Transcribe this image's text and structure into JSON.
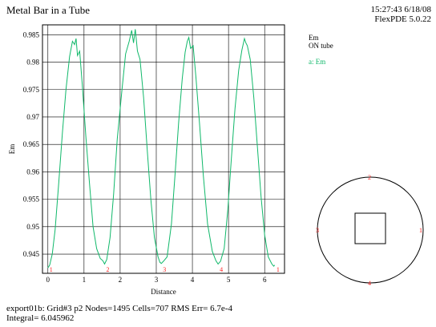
{
  "header": {
    "title": "Metal Bar in a Tube",
    "stamp": "15:27:43 6/18/08\nFlexPDE 5.0.22"
  },
  "legend": {
    "title": "Em\nON tube",
    "series_entry": "a: Em"
  },
  "footer": {
    "line1": "export01b:  Grid#3  p2  Nodes=1495 Cells=707 RMS Err= 6.7e-4",
    "line2": "Integral=  6.045962"
  },
  "colors": {
    "series": "#10b86a",
    "marker": "#ff2020",
    "grid": "#000000"
  },
  "chart_data": {
    "type": "line",
    "title": "Metal Bar in a Tube",
    "xlabel": "Distance",
    "ylabel": "Em",
    "xlim": [
      -0.15,
      6.55
    ],
    "ylim": [
      0.9415,
      0.9868
    ],
    "xticks": [
      "0",
      "1",
      "2",
      "3",
      "4",
      "5",
      "6"
    ],
    "yticks": [
      "0.945",
      "0.95",
      "0.955",
      "0.96",
      "0.965",
      "0.97",
      "0.975",
      "0.98",
      "0.985"
    ],
    "grid": true,
    "path_markers": [
      {
        "label": "1",
        "x": 0.0
      },
      {
        "label": "2",
        "x": 1.57
      },
      {
        "label": "3",
        "x": 3.14
      },
      {
        "label": "4",
        "x": 4.71
      },
      {
        "label": "1",
        "x": 6.28
      }
    ],
    "series": [
      {
        "name": "a: Em",
        "x": [
          0.0,
          0.05,
          0.12,
          0.2,
          0.3,
          0.4,
          0.5,
          0.6,
          0.68,
          0.74,
          0.78,
          0.82,
          0.88,
          0.95,
          1.05,
          1.15,
          1.25,
          1.35,
          1.45,
          1.52,
          1.57,
          1.63,
          1.72,
          1.82,
          1.92,
          2.05,
          2.15,
          2.25,
          2.32,
          2.37,
          2.42,
          2.48,
          2.55,
          2.65,
          2.75,
          2.85,
          2.95,
          3.05,
          3.1,
          3.14,
          3.2,
          3.3,
          3.42,
          3.52,
          3.62,
          3.72,
          3.8,
          3.86,
          3.9,
          3.95,
          4.02,
          4.1,
          4.2,
          4.3,
          4.42,
          4.55,
          4.65,
          4.71,
          4.78,
          4.88,
          4.98,
          5.08,
          5.18,
          5.28,
          5.37,
          5.44,
          5.48,
          5.52,
          5.6,
          5.7,
          5.8,
          5.9,
          6.0,
          6.1,
          6.2,
          6.25,
          6.28
        ],
        "values": [
          0.9425,
          0.943,
          0.945,
          0.9495,
          0.958,
          0.967,
          0.975,
          0.981,
          0.9838,
          0.9832,
          0.9843,
          0.9812,
          0.982,
          0.976,
          0.9665,
          0.958,
          0.95,
          0.946,
          0.9442,
          0.9438,
          0.9432,
          0.944,
          0.948,
          0.956,
          0.966,
          0.975,
          0.9815,
          0.9838,
          0.9858,
          0.9835,
          0.986,
          0.982,
          0.9805,
          0.9735,
          0.964,
          0.955,
          0.948,
          0.9445,
          0.9435,
          0.9433,
          0.9437,
          0.9445,
          0.9505,
          0.9595,
          0.969,
          0.977,
          0.9818,
          0.9838,
          0.9845,
          0.9825,
          0.983,
          0.977,
          0.9685,
          0.9595,
          0.9505,
          0.9455,
          0.9438,
          0.9432,
          0.9437,
          0.946,
          0.953,
          0.9625,
          0.9715,
          0.9785,
          0.9822,
          0.9843,
          0.9835,
          0.983,
          0.9805,
          0.9735,
          0.9645,
          0.9555,
          0.9485,
          0.9445,
          0.9432,
          0.9428,
          0.943
        ]
      }
    ]
  }
}
